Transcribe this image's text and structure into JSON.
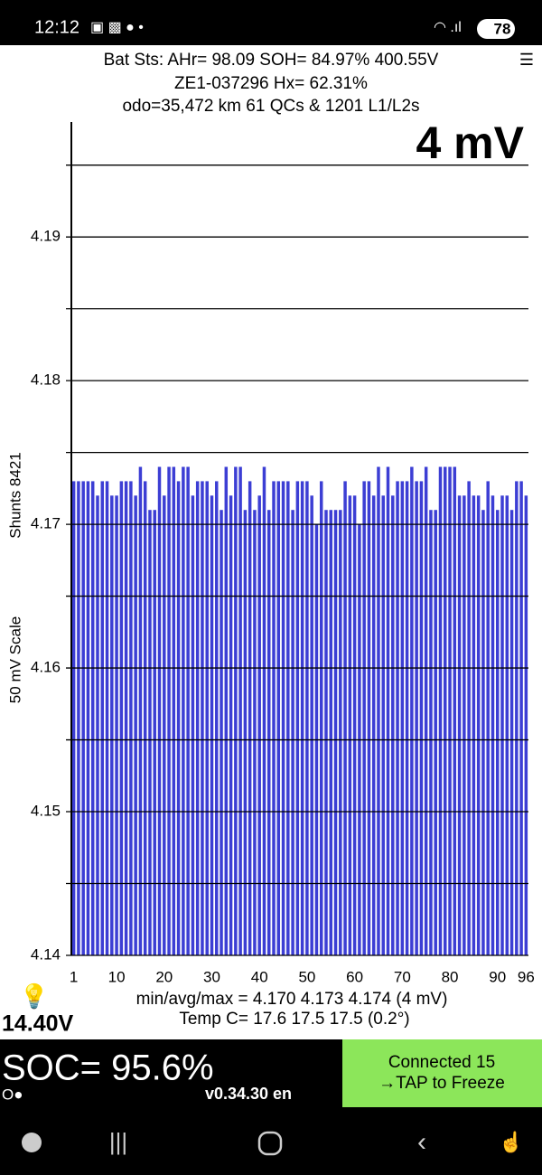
{
  "status_bar": {
    "time": "12:12",
    "battery": "78"
  },
  "header": {
    "line1": "Bat Sts:  AHr= 98.09  SOH= 84.97%  400.55V",
    "line2": "ZE1-037296   Hx= 62.31%",
    "line3": "odo=35,472 km  61 QCs & 1201 L1/L2s",
    "menu": "☰"
  },
  "chart_data": {
    "type": "bar",
    "title": "4 mV",
    "y_label": "50 mV Scale",
    "y_label2": "Shunts 8421",
    "color": "#3c3ed4",
    "x": [
      1,
      2,
      3,
      4,
      5,
      6,
      7,
      8,
      9,
      10,
      11,
      12,
      13,
      14,
      15,
      16,
      17,
      18,
      19,
      20,
      21,
      22,
      23,
      24,
      25,
      26,
      27,
      28,
      29,
      30,
      31,
      32,
      33,
      34,
      35,
      36,
      37,
      38,
      39,
      40,
      41,
      42,
      43,
      44,
      45,
      46,
      47,
      48,
      49,
      50,
      51,
      52,
      53,
      54,
      55,
      56,
      57,
      58,
      59,
      60,
      61,
      62,
      63,
      64,
      65,
      66,
      67,
      68,
      69,
      70,
      71,
      72,
      73,
      74,
      75,
      76,
      77,
      78,
      79,
      80,
      81,
      82,
      83,
      84,
      85,
      86,
      87,
      88,
      89,
      90,
      91,
      92,
      93,
      94,
      95,
      96
    ],
    "values": [
      4.173,
      4.173,
      4.173,
      4.173,
      4.173,
      4.172,
      4.173,
      4.173,
      4.172,
      4.172,
      4.173,
      4.173,
      4.173,
      4.172,
      4.174,
      4.173,
      4.171,
      4.171,
      4.174,
      4.172,
      4.174,
      4.174,
      4.173,
      4.174,
      4.174,
      4.172,
      4.173,
      4.173,
      4.173,
      4.172,
      4.173,
      4.171,
      4.174,
      4.172,
      4.174,
      4.174,
      4.171,
      4.173,
      4.171,
      4.172,
      4.174,
      4.171,
      4.173,
      4.173,
      4.173,
      4.173,
      4.171,
      4.173,
      4.173,
      4.173,
      4.172,
      4.17,
      4.173,
      4.171,
      4.171,
      4.171,
      4.171,
      4.173,
      4.172,
      4.172,
      4.17,
      4.173,
      4.173,
      4.172,
      4.174,
      4.172,
      4.174,
      4.172,
      4.173,
      4.173,
      4.173,
      4.174,
      4.173,
      4.173,
      4.174,
      4.171,
      4.171,
      4.174,
      4.174,
      4.174,
      4.174,
      4.172,
      4.172,
      4.173,
      4.172,
      4.172,
      4.171,
      4.173,
      4.172,
      4.171,
      4.172,
      4.172,
      4.171,
      4.173,
      4.173,
      4.172
    ],
    "xlim": [
      0.5,
      96.5
    ],
    "xticks": [
      1,
      10,
      20,
      30,
      40,
      50,
      60,
      70,
      80,
      90,
      96
    ],
    "ylim": [
      4.14,
      4.198
    ],
    "yticks": [
      4.14,
      4.15,
      4.16,
      4.17,
      4.18,
      4.19
    ],
    "minor_yticks": [
      4.145,
      4.155,
      4.165,
      4.175,
      4.185,
      4.195
    ],
    "grid": true
  },
  "footer": {
    "pack_voltage": "14.40V",
    "stats": "min/avg/max = 4.170 4.173 4.174  (4 mV)",
    "temp": "Temp C= 17.6  17.5  17.5  (0.2°)",
    "soc": "SOC= 95.6%",
    "indicator": "O●",
    "version": "v0.34.30 en",
    "button_line1": "Connected 15",
    "button_line2": "→TAP to Freeze"
  }
}
